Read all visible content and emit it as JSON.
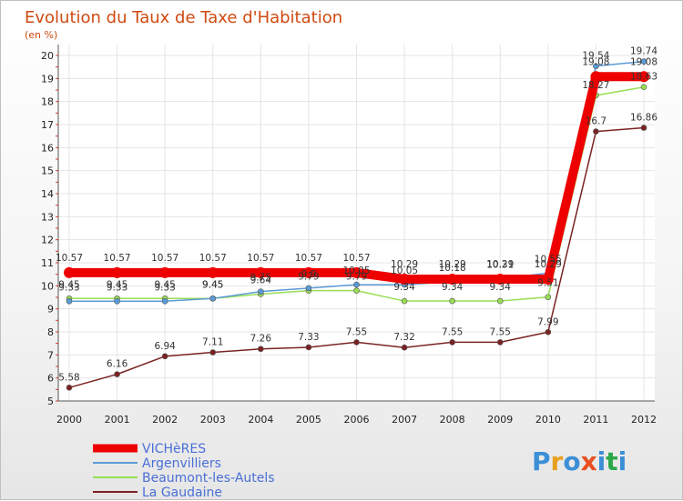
{
  "chart_data": {
    "type": "line",
    "title": "Evolution du Taux de Taxe d'Habitation",
    "subtitle": "(en %)",
    "xlabel": "",
    "ylabel": "",
    "ylim": [
      5,
      20
    ],
    "yticks": [
      "5",
      "6",
      "7",
      "8",
      "9",
      "10",
      "11",
      "12",
      "13",
      "14",
      "15",
      "16",
      "17",
      "18",
      "19",
      "20"
    ],
    "categories": [
      "2000",
      "2001",
      "2002",
      "2003",
      "2004",
      "2005",
      "2006",
      "2007",
      "2008",
      "2009",
      "2010",
      "2011",
      "2012"
    ],
    "series": [
      {
        "name": "VICHèRES",
        "color": "#ee0000",
        "values": [
          10.57,
          10.57,
          10.57,
          10.57,
          10.57,
          10.57,
          10.57,
          10.29,
          10.29,
          10.29,
          10.29,
          19.08,
          19.08
        ],
        "labels": [
          "10.57",
          "10.57",
          "10.57",
          "10.57",
          "10.57",
          "10.57",
          "10.57",
          "10.29",
          "10.29",
          "10.29",
          "10.29",
          "19.08",
          "19.08"
        ]
      },
      {
        "name": "Argenvilliers",
        "color": "#5b9bd5",
        "values": [
          9.33,
          9.33,
          9.33,
          9.45,
          9.75,
          9.9,
          10.05,
          10.05,
          10.18,
          10.31,
          10.55,
          19.54,
          19.74
        ],
        "labels": [
          "9.33",
          "9.33",
          "9.33",
          "9.45",
          "9.75",
          "9.9",
          "10.05",
          "10.05",
          "10.18",
          "10.31",
          "10.55",
          "19.54",
          "19.74"
        ]
      },
      {
        "name": "Beaumont-les-Autels",
        "color": "#99dd55",
        "values": [
          9.45,
          9.45,
          9.45,
          9.45,
          9.64,
          9.79,
          9.79,
          9.34,
          9.34,
          9.34,
          9.51,
          18.27,
          18.63
        ],
        "labels": [
          "9.45",
          "9.45",
          "9.45",
          "9.45",
          "9.64",
          "9.79",
          "9.79",
          "9.34",
          "9.34",
          "9.34",
          "9.51",
          "18.27",
          "18.63"
        ]
      },
      {
        "name": "La Gaudaine",
        "color": "#7a2222",
        "values": [
          5.58,
          6.16,
          6.94,
          7.11,
          7.26,
          7.33,
          7.55,
          7.32,
          7.55,
          7.55,
          7.99,
          16.7,
          16.86
        ],
        "labels": [
          "5.58",
          "6.16",
          "6.94",
          "7.11",
          "7.26",
          "7.33",
          "7.55",
          "7.32",
          "7.55",
          "7.55",
          "7.99",
          "16.7",
          "16.86"
        ]
      }
    ],
    "legend": [
      "VICHèRES",
      "Argenvilliers",
      "Beaumont-les-Autels",
      "La Gaudaine"
    ]
  },
  "brand": {
    "letters": [
      "P",
      "r",
      "o",
      "x",
      "i",
      "t",
      "i"
    ],
    "colors": [
      "#3b8fd6",
      "#e8a020",
      "#3b8fd6",
      "#e85020",
      "#3b8fd6",
      "#2aa84a",
      "#3b8fd6"
    ]
  }
}
